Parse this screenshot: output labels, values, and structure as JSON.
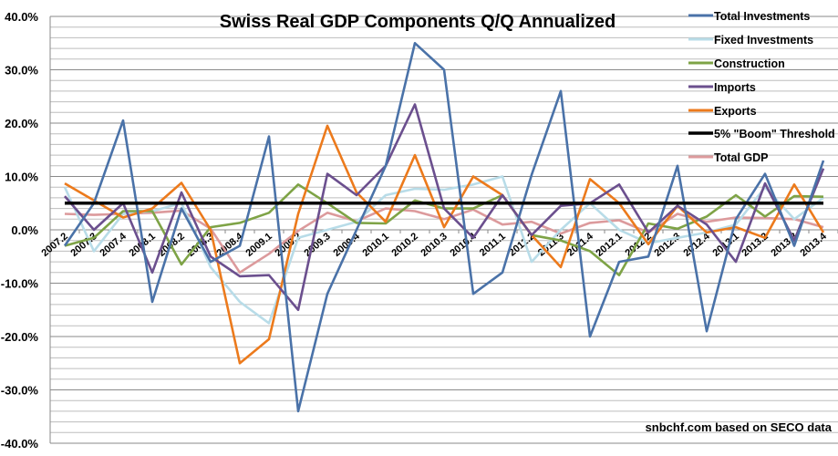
{
  "chart_data": {
    "type": "line",
    "title": "Swiss Real GDP Components Q/Q Annualized",
    "source_note": "snbchf.com based on SECO data",
    "xlabel": "",
    "ylabel": "",
    "ylim": [
      -40,
      40
    ],
    "y_ticks": [
      "40.0%",
      "30.0%",
      "20.0%",
      "10.0%",
      "0.0%",
      "-10.0%",
      "-20.0%",
      "-30.0%",
      "-40.0%"
    ],
    "grid": true,
    "legend_position": "top-right",
    "categories": [
      "2007.2",
      "2007.3",
      "2007.4",
      "2008.1",
      "2008.2",
      "2008.3",
      "2008.4",
      "2009.1",
      "2009.2",
      "2009.3",
      "2009.4",
      "2010.1",
      "2010.2",
      "2010.3",
      "2010.4",
      "2011.1",
      "2011.2",
      "2011.3",
      "2011.4",
      "2012.1",
      "2012.2",
      "2012.3",
      "2012.4",
      "2013.1",
      "2013.2",
      "2013.3",
      "2013.4"
    ],
    "series": [
      {
        "name": "Total Investments",
        "color": "#4a72a8",
        "values": [
          -3,
          5,
          20.5,
          -13.5,
          4,
          -6,
          -3,
          17.5,
          -34,
          -12,
          0,
          12,
          35,
          30,
          -12,
          -8,
          10.3,
          26,
          -20,
          -6,
          -5,
          12,
          -19,
          2,
          10.5,
          -3,
          13
        ]
      },
      {
        "name": "Fixed Investments",
        "color": "#b8dce8",
        "values": [
          8,
          -4,
          3,
          3.5,
          5,
          -7,
          -13.5,
          -17.5,
          -1.5,
          0,
          1.5,
          6.5,
          7.7,
          7.5,
          8.5,
          10,
          -6,
          0,
          5,
          0,
          -2.5,
          -1.5,
          -0.5,
          1,
          8,
          2,
          6
        ]
      },
      {
        "name": "Construction",
        "color": "#7ea346",
        "values": [
          -3,
          -1.5,
          3.5,
          3.5,
          -6.5,
          0.5,
          1.3,
          3.2,
          8.5,
          5,
          1.3,
          1.2,
          5.5,
          4,
          4,
          6.5,
          -1,
          -2,
          -4,
          -8.5,
          1.2,
          0.2,
          2.5,
          6.5,
          2.5,
          6.3,
          6.2
        ]
      },
      {
        "name": "Imports",
        "color": "#6b4f8e",
        "values": [
          6.3,
          0,
          5,
          -8,
          7,
          -5,
          -8.7,
          -8.5,
          -15,
          10.5,
          6.5,
          12,
          23.5,
          4,
          -1.5,
          6.5,
          -1,
          4.5,
          5,
          8.5,
          -0.5,
          4.5,
          1,
          -6,
          8.7,
          -2,
          11.5
        ]
      },
      {
        "name": "Exports",
        "color": "#ec7a1c",
        "values": [
          8.7,
          5.5,
          2.3,
          4,
          8.8,
          0,
          -25,
          -20.5,
          3,
          19.5,
          7,
          1.5,
          14,
          0.5,
          10,
          6.5,
          -1,
          -7,
          9.5,
          5,
          -2.7,
          4.5,
          -0.5,
          0.5,
          -1.5,
          8.5,
          -0.5
        ]
      },
      {
        "name": "5% \"Boom\" Threshold",
        "color": "#000000",
        "values": [
          5,
          5,
          5,
          5,
          5,
          5,
          5,
          5,
          5,
          5,
          5,
          5,
          5,
          5,
          5,
          5,
          5,
          5,
          5,
          5,
          5,
          5,
          5,
          5,
          5,
          5,
          5
        ]
      },
      {
        "name": "Total GDP",
        "color": "#dc9a9c",
        "values": [
          3,
          2.8,
          3,
          3.2,
          3.6,
          0.2,
          -8,
          -4.5,
          -0.2,
          3.2,
          1.6,
          4,
          3.5,
          2,
          3.8,
          1,
          1.5,
          -0.7,
          1.3,
          1.8,
          -0.5,
          3,
          1.5,
          2.3,
          2.2,
          2,
          0.5
        ]
      }
    ]
  }
}
